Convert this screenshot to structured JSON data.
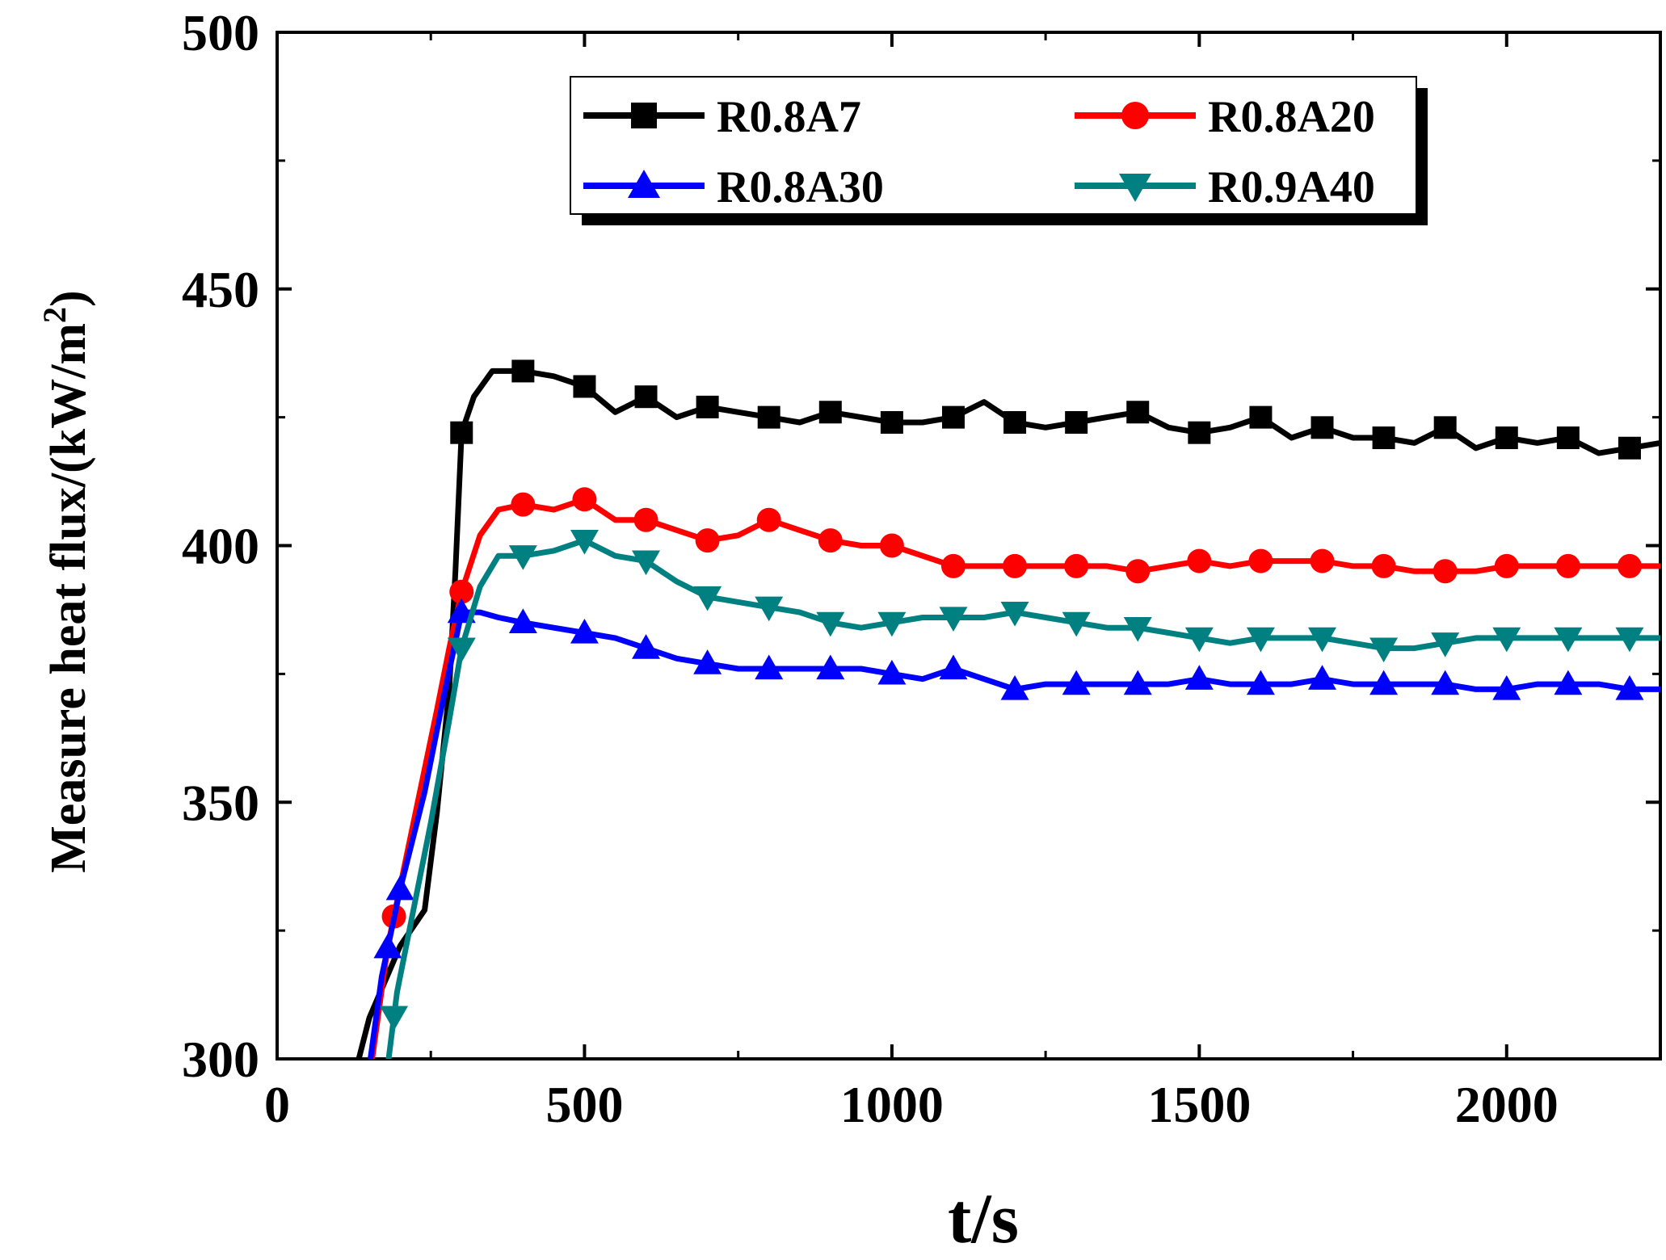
{
  "chart_data": {
    "type": "line",
    "xlabel": "t/s",
    "ylabel": "Measure heat flux/(kW/m",
    "ylabel_sup": "2",
    "ylabel_close": ")",
    "xlim": [
      0,
      2250
    ],
    "ylim": [
      300,
      500
    ],
    "x_ticks": [
      0,
      500,
      1000,
      1500,
      2000
    ],
    "x_tick_labels": [
      "0",
      "500",
      "1000",
      "1500",
      "2000"
    ],
    "y_ticks": [
      300,
      350,
      400,
      450,
      500
    ],
    "y_tick_labels": [
      "300",
      "350",
      "400",
      "450",
      "500"
    ],
    "legend_position": "top-right",
    "series": [
      {
        "name": "R0.8A7",
        "color": "#000000",
        "marker": "square",
        "points": [
          [
            120,
            294
          ],
          [
            150,
            308
          ],
          [
            200,
            322
          ],
          [
            240,
            329
          ],
          [
            260,
            348
          ],
          [
            280,
            372
          ],
          [
            290,
            395
          ],
          [
            300,
            422
          ],
          [
            320,
            429
          ],
          [
            350,
            434
          ],
          [
            400,
            434
          ],
          [
            450,
            433
          ],
          [
            500,
            431
          ],
          [
            550,
            426
          ],
          [
            600,
            429
          ],
          [
            650,
            425
          ],
          [
            700,
            427
          ],
          [
            750,
            426
          ],
          [
            800,
            425
          ],
          [
            850,
            424
          ],
          [
            900,
            426
          ],
          [
            950,
            425
          ],
          [
            1000,
            424
          ],
          [
            1050,
            424
          ],
          [
            1100,
            425
          ],
          [
            1150,
            428
          ],
          [
            1200,
            424
          ],
          [
            1250,
            423
          ],
          [
            1300,
            424
          ],
          [
            1350,
            425
          ],
          [
            1400,
            426
          ],
          [
            1450,
            423
          ],
          [
            1500,
            422
          ],
          [
            1550,
            423
          ],
          [
            1600,
            425
          ],
          [
            1650,
            421
          ],
          [
            1700,
            423
          ],
          [
            1750,
            421
          ],
          [
            1800,
            421
          ],
          [
            1850,
            420
          ],
          [
            1900,
            423
          ],
          [
            1950,
            419
          ],
          [
            2000,
            421
          ],
          [
            2050,
            420
          ],
          [
            2100,
            421
          ],
          [
            2150,
            418
          ],
          [
            2200,
            419
          ],
          [
            2250,
            420
          ]
        ],
        "marker_x": [
          300,
          400,
          500,
          600,
          700,
          800,
          900,
          1000,
          1100,
          1200,
          1300,
          1400,
          1500,
          1600,
          1700,
          1800,
          1900,
          2000,
          2100,
          2200
        ]
      },
      {
        "name": "R0.8A20",
        "color": "#ff0000",
        "marker": "circle",
        "points": [
          [
            150,
            296
          ],
          [
            180,
            322
          ],
          [
            220,
            345
          ],
          [
            260,
            368
          ],
          [
            280,
            380
          ],
          [
            300,
            391
          ],
          [
            330,
            402
          ],
          [
            360,
            407
          ],
          [
            400,
            408
          ],
          [
            450,
            407
          ],
          [
            500,
            409
          ],
          [
            550,
            405
          ],
          [
            600,
            405
          ],
          [
            650,
            403
          ],
          [
            700,
            401
          ],
          [
            750,
            402
          ],
          [
            800,
            405
          ],
          [
            850,
            403
          ],
          [
            900,
            401
          ],
          [
            950,
            400
          ],
          [
            1000,
            400
          ],
          [
            1050,
            398
          ],
          [
            1100,
            396
          ],
          [
            1150,
            396
          ],
          [
            1200,
            396
          ],
          [
            1250,
            396
          ],
          [
            1300,
            396
          ],
          [
            1350,
            396
          ],
          [
            1400,
            395
          ],
          [
            1450,
            396
          ],
          [
            1500,
            397
          ],
          [
            1550,
            396
          ],
          [
            1600,
            397
          ],
          [
            1650,
            397
          ],
          [
            1700,
            397
          ],
          [
            1750,
            396
          ],
          [
            1800,
            396
          ],
          [
            1850,
            395
          ],
          [
            1900,
            395
          ],
          [
            1950,
            395
          ],
          [
            2000,
            396
          ],
          [
            2050,
            396
          ],
          [
            2100,
            396
          ],
          [
            2150,
            396
          ],
          [
            2200,
            396
          ],
          [
            2250,
            396
          ]
        ],
        "marker_x": [
          190,
          300,
          400,
          500,
          600,
          700,
          800,
          900,
          1000,
          1100,
          1200,
          1300,
          1400,
          1500,
          1600,
          1700,
          1800,
          1900,
          2000,
          2100,
          2200
        ]
      },
      {
        "name": "R0.8A30",
        "color": "#0000ff",
        "marker": "triangle-up",
        "points": [
          [
            145,
            294
          ],
          [
            170,
            316
          ],
          [
            200,
            333
          ],
          [
            240,
            352
          ],
          [
            270,
            370
          ],
          [
            300,
            387
          ],
          [
            330,
            387
          ],
          [
            360,
            386
          ],
          [
            400,
            385
          ],
          [
            450,
            384
          ],
          [
            500,
            383
          ],
          [
            550,
            382
          ],
          [
            600,
            380
          ],
          [
            650,
            378
          ],
          [
            700,
            377
          ],
          [
            750,
            376
          ],
          [
            800,
            376
          ],
          [
            850,
            376
          ],
          [
            900,
            376
          ],
          [
            950,
            376
          ],
          [
            1000,
            375
          ],
          [
            1050,
            374
          ],
          [
            1100,
            376
          ],
          [
            1150,
            374
          ],
          [
            1200,
            372
          ],
          [
            1250,
            373
          ],
          [
            1300,
            373
          ],
          [
            1350,
            373
          ],
          [
            1400,
            373
          ],
          [
            1450,
            373
          ],
          [
            1500,
            374
          ],
          [
            1550,
            373
          ],
          [
            1600,
            373
          ],
          [
            1650,
            373
          ],
          [
            1700,
            374
          ],
          [
            1750,
            373
          ],
          [
            1800,
            373
          ],
          [
            1850,
            373
          ],
          [
            1900,
            373
          ],
          [
            1950,
            372
          ],
          [
            2000,
            372
          ],
          [
            2050,
            373
          ],
          [
            2100,
            373
          ],
          [
            2150,
            373
          ],
          [
            2200,
            372
          ],
          [
            2250,
            372
          ]
        ],
        "marker_x": [
          180,
          200,
          300,
          400,
          500,
          600,
          700,
          800,
          900,
          1000,
          1100,
          1200,
          1300,
          1400,
          1500,
          1600,
          1700,
          1800,
          1900,
          2000,
          2100,
          2200
        ]
      },
      {
        "name": "R0.9A40",
        "color": "#008080",
        "marker": "triangle-down",
        "points": [
          [
            175,
            294
          ],
          [
            195,
            313
          ],
          [
            220,
            328
          ],
          [
            250,
            346
          ],
          [
            280,
            366
          ],
          [
            300,
            380
          ],
          [
            330,
            392
          ],
          [
            360,
            398
          ],
          [
            400,
            398
          ],
          [
            450,
            399
          ],
          [
            500,
            401
          ],
          [
            550,
            398
          ],
          [
            600,
            397
          ],
          [
            650,
            393
          ],
          [
            700,
            390
          ],
          [
            750,
            389
          ],
          [
            800,
            388
          ],
          [
            850,
            387
          ],
          [
            900,
            385
          ],
          [
            950,
            384
          ],
          [
            1000,
            385
          ],
          [
            1050,
            386
          ],
          [
            1100,
            386
          ],
          [
            1150,
            386
          ],
          [
            1200,
            387
          ],
          [
            1250,
            386
          ],
          [
            1300,
            385
          ],
          [
            1350,
            384
          ],
          [
            1400,
            384
          ],
          [
            1450,
            383
          ],
          [
            1500,
            382
          ],
          [
            1550,
            381
          ],
          [
            1600,
            382
          ],
          [
            1650,
            382
          ],
          [
            1700,
            382
          ],
          [
            1750,
            381
          ],
          [
            1800,
            380
          ],
          [
            1850,
            380
          ],
          [
            1900,
            381
          ],
          [
            1950,
            382
          ],
          [
            2000,
            382
          ],
          [
            2050,
            382
          ],
          [
            2100,
            382
          ],
          [
            2150,
            382
          ],
          [
            2200,
            382
          ],
          [
            2250,
            382
          ]
        ],
        "marker_x": [
          190,
          300,
          400,
          500,
          600,
          700,
          800,
          900,
          1000,
          1100,
          1200,
          1300,
          1400,
          1500,
          1600,
          1700,
          1800,
          1900,
          2000,
          2100,
          2200
        ]
      }
    ]
  }
}
